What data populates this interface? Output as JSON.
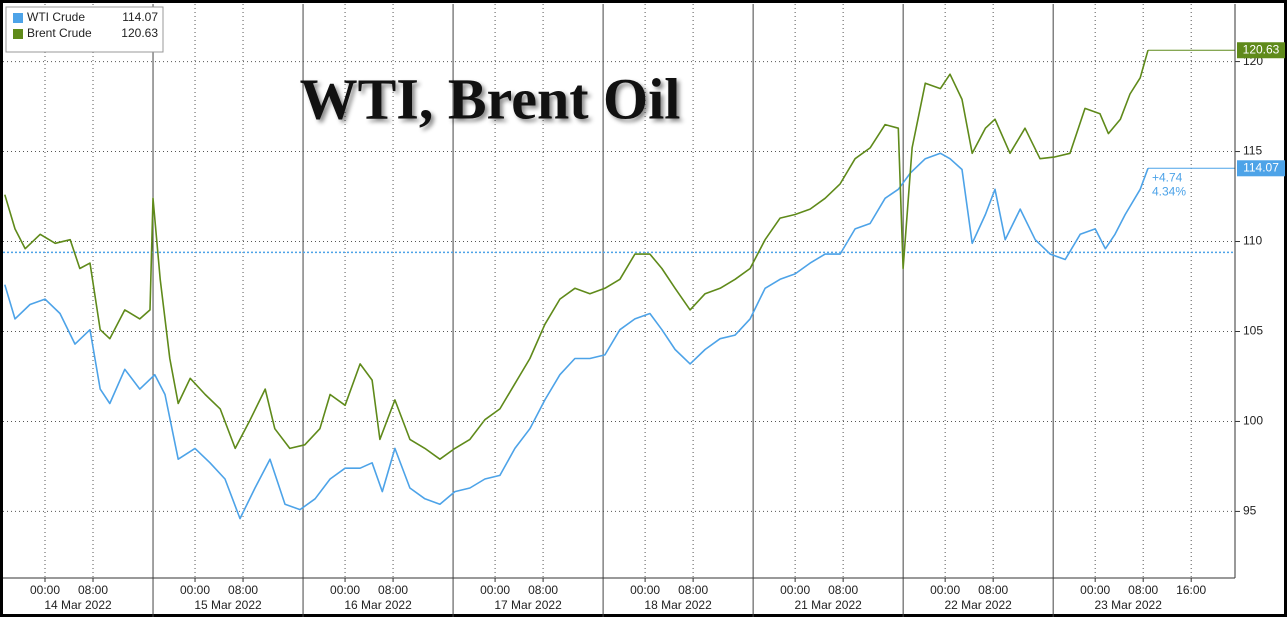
{
  "chart_data": {
    "type": "line",
    "title": "WTI, Brent Oil",
    "xlim": [
      0,
      205.3
    ],
    "xticks": [
      {
        "value": 7,
        "label": "00:00"
      },
      {
        "value": 15,
        "label": "08:00"
      },
      {
        "value": 32,
        "label": "00:00"
      },
      {
        "value": 40,
        "label": "08:00"
      },
      {
        "value": 57,
        "label": "00:00"
      },
      {
        "value": 65,
        "label": "08:00"
      },
      {
        "value": 82,
        "label": "00:00"
      },
      {
        "value": 90,
        "label": "08:00"
      },
      {
        "value": 107,
        "label": "00:00"
      },
      {
        "value": 115,
        "label": "08:00"
      },
      {
        "value": 132,
        "label": "00:00"
      },
      {
        "value": 140,
        "label": "08:00"
      },
      {
        "value": 157,
        "label": "00:00"
      },
      {
        "value": 165,
        "label": "08:00"
      },
      {
        "value": 182,
        "label": "00:00"
      },
      {
        "value": 190,
        "label": "08:00"
      },
      {
        "value": 198,
        "label": "16:00"
      }
    ],
    "days": [
      {
        "start": 0,
        "end": 25,
        "label": "14 Mar 2022"
      },
      {
        "start": 25,
        "end": 50,
        "label": "15 Mar 2022"
      },
      {
        "start": 50,
        "end": 75,
        "label": "16 Mar 2022"
      },
      {
        "start": 75,
        "end": 100,
        "label": "17 Mar 2022"
      },
      {
        "start": 100,
        "end": 125,
        "label": "18 Mar 2022"
      },
      {
        "start": 125,
        "end": 150,
        "label": "21 Mar 2022"
      },
      {
        "start": 150,
        "end": 175,
        "label": "22 Mar 2022"
      },
      {
        "start": 175,
        "end": 200,
        "label": "23 Mar 2022"
      }
    ],
    "ylim": [
      91.3,
      123.2
    ],
    "yticks": [
      95,
      100,
      105,
      110,
      115,
      120
    ],
    "grid": true,
    "legend": "top-left",
    "series": [
      {
        "name": "WTI Crude",
        "color": "#4da3e8",
        "reference_line": 109.4,
        "annotations": [
          "+4.74",
          "4.34%"
        ],
        "x": [
          0.3,
          2,
          4.5,
          7,
          9.5,
          12,
          14.5,
          16.2,
          17.8,
          20.3,
          22.8,
          25.3,
          27,
          29.2,
          32,
          34.5,
          37,
          39.5,
          42,
          44.5,
          47,
          49.5,
          52,
          54.5,
          57,
          59.5,
          61.5,
          63.2,
          65.3,
          67.8,
          70.3,
          72.8,
          75.3,
          77.8,
          80.3,
          82.8,
          85.3,
          87.8,
          90.3,
          92.8,
          95.3,
          97.8,
          100.3,
          102.8,
          105.3,
          107.8,
          109.8,
          112,
          114.5,
          117,
          119.5,
          122,
          124.5,
          127,
          129.5,
          132,
          134.5,
          137,
          139.5,
          142,
          144.5,
          147,
          149.2,
          151.2,
          153.7,
          156.2,
          157.8,
          159.8,
          161.5,
          163.7,
          165.3,
          167,
          169.5,
          172,
          174.5,
          177,
          179.5,
          182,
          183.7,
          185.3,
          187,
          189.5,
          190.8
        ],
        "values": [
          107.6,
          105.7,
          106.5,
          106.8,
          106.0,
          104.3,
          105.1,
          101.8,
          101.0,
          102.9,
          101.8,
          102.6,
          101.5,
          97.9,
          98.5,
          97.7,
          96.8,
          94.6,
          96.3,
          97.9,
          95.4,
          95.1,
          95.7,
          96.8,
          97.4,
          97.4,
          97.7,
          96.1,
          98.5,
          96.3,
          95.7,
          95.4,
          96.1,
          96.3,
          96.8,
          97.0,
          98.5,
          99.6,
          101.2,
          102.6,
          103.5,
          103.5,
          103.7,
          105.1,
          105.7,
          106.0,
          105.1,
          104.0,
          103.2,
          104.0,
          104.6,
          104.8,
          105.7,
          107.4,
          107.9,
          108.2,
          108.8,
          109.3,
          109.3,
          110.7,
          111.0,
          112.4,
          112.9,
          113.8,
          114.6,
          114.9,
          114.6,
          114.0,
          109.9,
          111.5,
          112.9,
          110.1,
          111.8,
          110.1,
          109.3,
          109.0,
          110.4,
          110.7,
          109.6,
          110.4,
          111.5,
          112.9,
          114.07
        ]
      },
      {
        "name": "Brent Crude",
        "color": "#5f8a1a",
        "x": [
          0.3,
          2,
          3.7,
          6.2,
          8.7,
          11.2,
          12.8,
          14.5,
          16.2,
          17.8,
          20.3,
          22.8,
          24.5,
          25,
          26.2,
          27.8,
          29.2,
          31.2,
          33.7,
          36.2,
          38.7,
          41.2,
          43.7,
          45.3,
          47.8,
          50.3,
          52.8,
          54.5,
          57,
          59.5,
          61.5,
          62.8,
          65.3,
          67.8,
          70.3,
          72.8,
          75.3,
          77.8,
          80.3,
          82.8,
          85.3,
          87.8,
          90.3,
          92.8,
          95.3,
          97.8,
          100.3,
          102.8,
          105.3,
          107.8,
          109.8,
          112,
          114.5,
          117,
          119.5,
          122,
          124.5,
          127,
          129.5,
          132,
          134.5,
          137,
          139.5,
          142,
          144.5,
          147,
          149.2,
          150,
          151.5,
          153.7,
          156.2,
          157.8,
          159.8,
          161.5,
          163.7,
          165.3,
          167.8,
          170.3,
          172.8,
          175.3,
          177.8,
          180.3,
          182.8,
          184.2,
          186.2,
          187.8,
          189.5,
          190.8
        ],
        "values": [
          112.6,
          110.7,
          109.6,
          110.4,
          109.9,
          110.1,
          108.5,
          108.8,
          105.1,
          104.6,
          106.2,
          105.7,
          106.2,
          112.4,
          107.9,
          103.5,
          101.0,
          102.4,
          101.5,
          100.7,
          98.5,
          100.1,
          101.8,
          99.6,
          98.5,
          98.7,
          99.6,
          101.5,
          100.9,
          103.2,
          102.3,
          99.0,
          101.2,
          99.0,
          98.5,
          97.9,
          98.5,
          99.0,
          100.1,
          100.7,
          102.1,
          103.5,
          105.4,
          106.8,
          107.4,
          107.1,
          107.4,
          107.9,
          109.3,
          109.3,
          108.5,
          107.4,
          106.2,
          107.1,
          107.4,
          107.9,
          108.5,
          110.1,
          111.3,
          111.5,
          111.8,
          112.4,
          113.2,
          114.6,
          115.2,
          116.5,
          116.3,
          108.5,
          115.2,
          118.8,
          118.5,
          119.3,
          117.9,
          114.9,
          116.3,
          116.8,
          114.9,
          116.3,
          114.6,
          114.7,
          114.9,
          117.4,
          117.1,
          116.0,
          116.8,
          118.2,
          119.1,
          120.63
        ]
      }
    ]
  }
}
